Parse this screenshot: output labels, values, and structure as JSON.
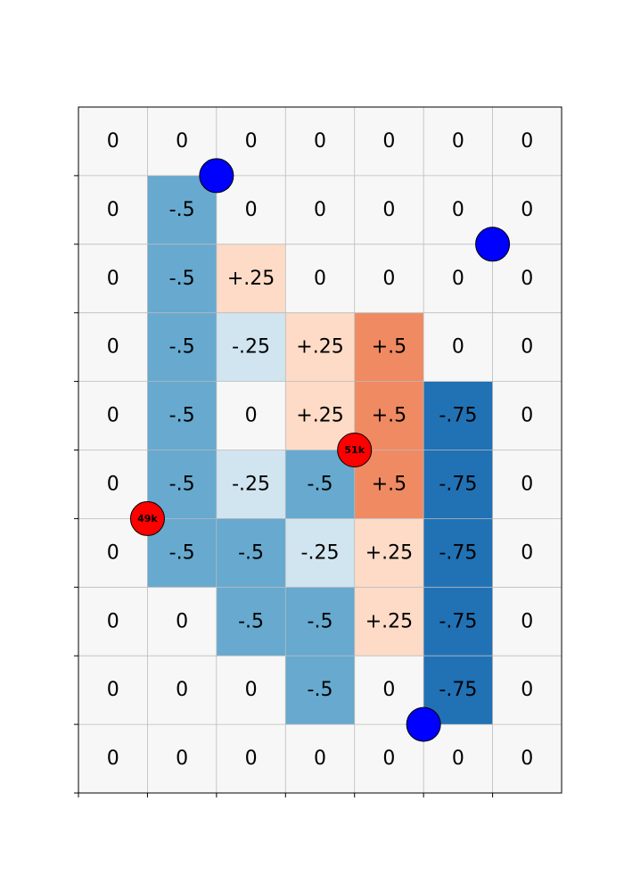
{
  "grid": {
    "rows": 10,
    "cols": 7,
    "values": [
      [
        "0",
        "0",
        "0",
        "0",
        "0",
        "0",
        "0"
      ],
      [
        "0",
        "-.5",
        "0",
        "0",
        "0",
        "0",
        "0"
      ],
      [
        "0",
        "-.5",
        "+.25",
        "0",
        "0",
        "0",
        "0"
      ],
      [
        "0",
        "-.5",
        "-.25",
        "+.25",
        "+.5",
        "0",
        "0"
      ],
      [
        "0",
        "-.5",
        "0",
        "+.25",
        "+.5",
        "-.75",
        "0"
      ],
      [
        "0",
        "-.5",
        "-.25",
        "-.5",
        "+.5",
        "-.75",
        "0"
      ],
      [
        "0",
        "-.5",
        "-.5",
        "-.25",
        "+.25",
        "-.75",
        "0"
      ],
      [
        "0",
        "0",
        "-.5",
        "-.5",
        "+.25",
        "-.75",
        "0"
      ],
      [
        "0",
        "0",
        "0",
        "-.5",
        "0",
        "-.75",
        "0"
      ],
      [
        "0",
        "0",
        "0",
        "0",
        "0",
        "0",
        "0"
      ]
    ],
    "colors": {
      "0": "#f7f7f7",
      "-.25": "#d1e5f0",
      "-.5": "#67a9cf",
      "-.75": "#2171b5",
      "+.25": "#fddbc7",
      "+.5": "#ef8a62"
    },
    "grid_line_color": "#bbbbbb"
  },
  "markers": [
    {
      "kind": "blue-dot",
      "x": 2,
      "y": 1,
      "color": "#0000ff"
    },
    {
      "kind": "blue-dot",
      "x": 6,
      "y": 2,
      "color": "#0000ff"
    },
    {
      "kind": "blue-dot",
      "x": 5,
      "y": 9,
      "color": "#0000ff"
    },
    {
      "kind": "red-dot",
      "x": 4,
      "y": 5,
      "label": "51k",
      "color": "#ff0000"
    },
    {
      "kind": "red-dot",
      "x": 1,
      "y": 6,
      "label": "49k",
      "color": "#ff0000"
    }
  ]
}
